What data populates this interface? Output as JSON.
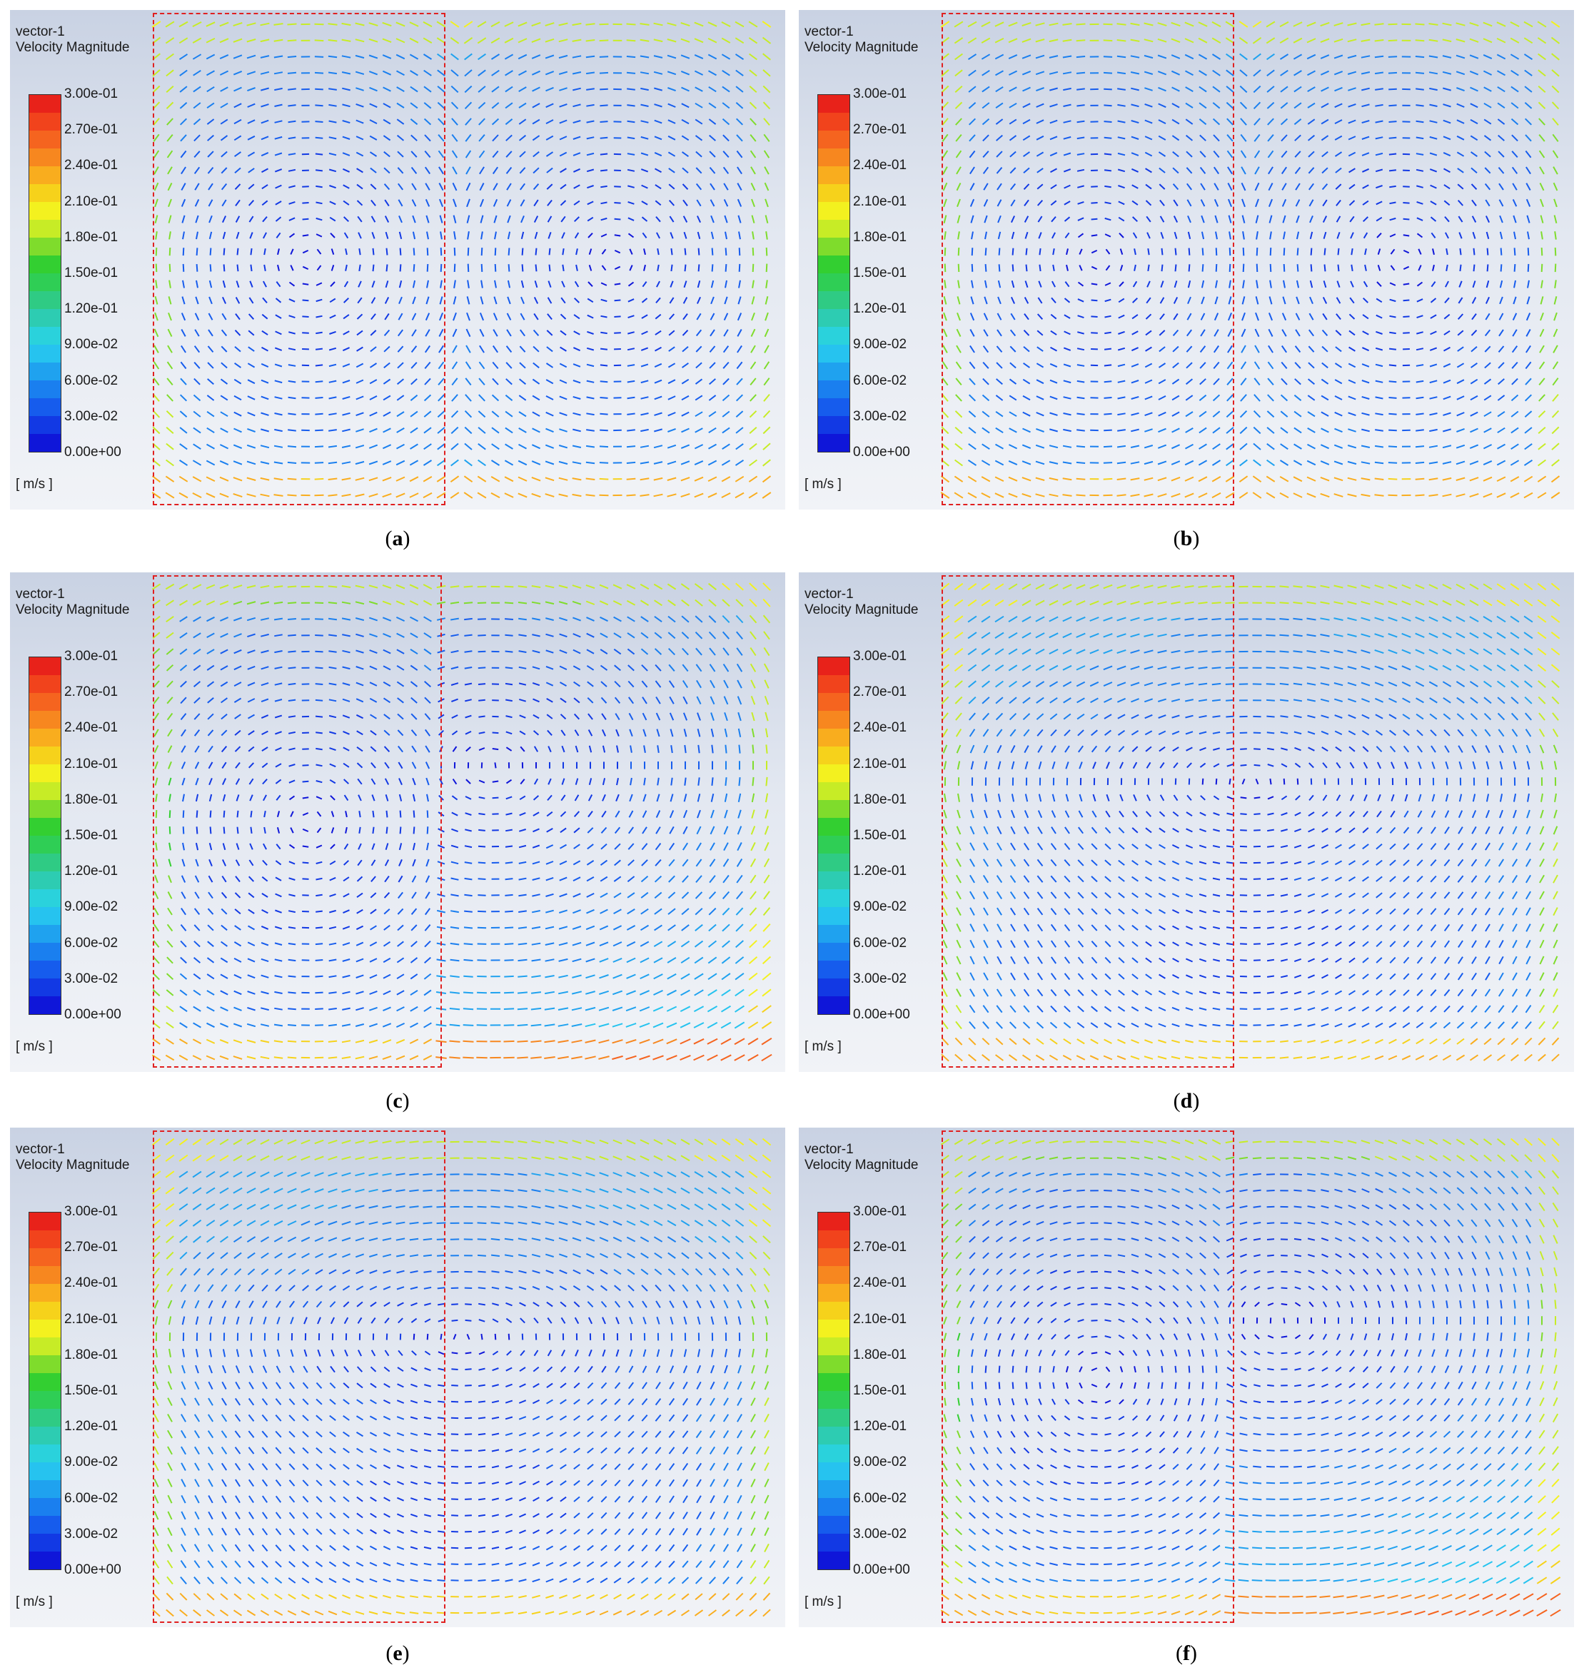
{
  "legend": {
    "title_line1": "vector-1",
    "title_line2": "Velocity Magnitude",
    "unit": "[ m/s ]",
    "ticks": [
      "3.00e-01",
      "2.70e-01",
      "2.40e-01",
      "2.10e-01",
      "1.80e-01",
      "1.50e-01",
      "1.20e-01",
      "9.00e-02",
      "6.00e-02",
      "3.00e-02",
      "0.00e+00"
    ],
    "colors": [
      "#e8221a",
      "#f1431c",
      "#f5641f",
      "#f7871f",
      "#f9ad1e",
      "#f6d21b",
      "#f3f11f",
      "#c7ec26",
      "#7fdc2c",
      "#33cf31",
      "#2fce55",
      "#2fcb84",
      "#2dccb2",
      "#2ad2dc",
      "#26c3ef",
      "#1fa2ef",
      "#1a7fef",
      "#165ced",
      "#1239e4",
      "#0f16d9"
    ]
  },
  "panels": [
    {
      "id": "a",
      "caption_open": "(",
      "caption_letter": "a",
      "caption_close": ")",
      "pattern": "cells"
    },
    {
      "id": "b",
      "caption_open": "(",
      "caption_letter": "b",
      "caption_close": ")",
      "pattern": "cells"
    },
    {
      "id": "c",
      "caption_open": "(",
      "caption_letter": "c",
      "caption_close": ")",
      "pattern": "vortex-left"
    },
    {
      "id": "d",
      "caption_open": "(",
      "caption_letter": "d",
      "caption_close": ")",
      "pattern": "loop"
    },
    {
      "id": "e",
      "caption_open": "(",
      "caption_letter": "e",
      "caption_close": ")",
      "pattern": "loop"
    },
    {
      "id": "f",
      "caption_open": "(",
      "caption_letter": "f",
      "caption_close": ")",
      "pattern": "vortex-left"
    }
  ]
}
